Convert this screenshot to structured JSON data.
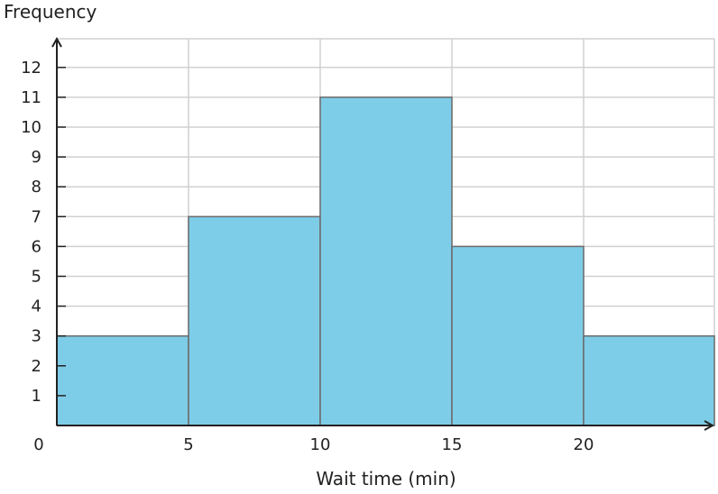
{
  "chart_data": {
    "type": "bar",
    "title": "",
    "xlabel": "Wait time (min)",
    "ylabel": "Frequency",
    "bins": [
      {
        "from": 0,
        "to": 5,
        "value": 3
      },
      {
        "from": 5,
        "to": 10,
        "value": 7
      },
      {
        "from": 10,
        "to": 15,
        "value": 11
      },
      {
        "from": 15,
        "to": 20,
        "value": 6
      },
      {
        "from": 20,
        "to": 25,
        "value": 3
      }
    ],
    "xlim": [
      0,
      25
    ],
    "ylim": [
      0,
      13
    ],
    "x_ticks": [
      0,
      5,
      10,
      15,
      20
    ],
    "y_ticks": [
      1,
      2,
      3,
      4,
      5,
      6,
      7,
      8,
      9,
      10,
      11,
      12
    ],
    "grid": true,
    "bar_color": "#7ecde8",
    "bar_edge_color": "#6b6b6b",
    "grid_color": "#d0d0d0",
    "axis_color": "#222222"
  }
}
